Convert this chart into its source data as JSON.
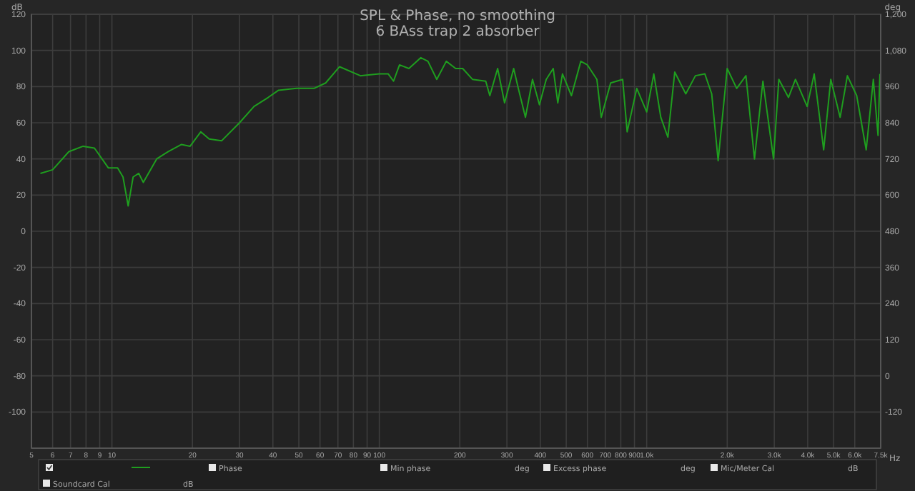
{
  "chart_data": {
    "type": "line",
    "title": "SPL & Phase, no smoothing",
    "subtitle": "6 BAss trap 2 absorber",
    "xlabel": "Hz",
    "ylabel": "dB",
    "y2label": "deg",
    "log": "x",
    "grid": true,
    "xlim": [
      5,
      7500
    ],
    "xticks": [
      5,
      6,
      7,
      8,
      9,
      10,
      20,
      30,
      40,
      50,
      60,
      70,
      80,
      90,
      100,
      200,
      300,
      400,
      500,
      600,
      700,
      800,
      900,
      {
        "value": 1000,
        "label": "1.0k"
      },
      {
        "value": 2000,
        "label": "2.0k"
      },
      {
        "value": 3000,
        "label": "3.0k"
      },
      {
        "value": 4000,
        "label": "4.0k"
      },
      {
        "value": 5000,
        "label": "5.0k"
      },
      {
        "value": 6000,
        "label": "6.0k"
      },
      {
        "value": 7500,
        "label": "7.5k"
      }
    ],
    "ylim": [
      -120,
      120
    ],
    "yticks": [
      -100,
      -80,
      -60,
      -40,
      -20,
      0,
      20,
      40,
      60,
      80,
      100,
      120
    ],
    "y2lim": [
      -240,
      1200
    ],
    "y2ticks": [
      -120,
      0,
      120,
      240,
      360,
      480,
      600,
      720,
      840,
      960,
      {
        "value": 1080,
        "label": "1,080"
      },
      {
        "value": 1200,
        "label": "1,200"
      }
    ],
    "series": [
      {
        "color": "#1f9e1f",
        "x": [
          5.4,
          6,
          6.9,
          7.8,
          8.6,
          9.7,
          10.5,
          11,
          11.5,
          12,
          12.6,
          13.1,
          14.7,
          16.2,
          18.2,
          19.6,
          21.5,
          23.1,
          25.7,
          30,
          34,
          38.4,
          42,
          49,
          57,
          63,
          71,
          85,
          100,
          108,
          113,
          119,
          129,
          143,
          152,
          164,
          178,
          193,
          205,
          223,
          250,
          259,
          277,
          294,
          318,
          331,
          352,
          374,
          397,
          421,
          447,
          465,
          484,
          523,
          567,
          600,
          651,
          676,
          733,
          813,
          845,
          918,
          1000,
          1063,
          1129,
          1200,
          1273,
          1400,
          1521,
          1650,
          1750,
          1850,
          2000,
          2170,
          2350,
          2530,
          2720,
          2980,
          3120,
          3390,
          3600,
          3980,
          4230,
          4590,
          4880,
          5290,
          5630,
          6100,
          6620,
          7040,
          7330,
          7450
        ],
        "values": [
          32,
          34,
          44,
          47,
          46,
          35,
          35,
          30,
          14,
          30,
          32,
          27,
          40,
          44,
          48,
          47,
          55,
          51,
          50,
          60,
          69,
          74,
          78,
          79,
          79,
          82,
          91,
          86,
          87,
          87,
          83,
          92,
          90,
          96,
          94,
          84,
          94,
          90,
          90,
          84,
          83,
          75,
          90,
          71,
          90,
          79,
          63,
          84,
          70,
          84,
          90,
          71,
          87,
          75,
          94,
          92,
          84,
          63,
          82,
          84,
          55,
          79,
          66,
          87,
          63,
          52,
          88,
          76,
          86,
          87,
          76,
          39,
          90,
          79,
          86,
          40,
          83,
          40,
          84,
          74,
          84,
          69,
          87,
          45,
          84,
          63,
          86,
          75,
          45,
          84,
          53,
          87
        ]
      }
    ],
    "annotations": [
      "Phase",
      "Min phase",
      "deg",
      "Excess phase",
      "deg",
      "Mic/Meter Cal",
      "dB",
      "Soundcard Cal",
      "dB"
    ]
  }
}
